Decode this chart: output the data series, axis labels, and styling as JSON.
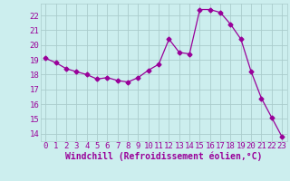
{
  "x": [
    0,
    1,
    2,
    3,
    4,
    5,
    6,
    7,
    8,
    9,
    10,
    11,
    12,
    13,
    14,
    15,
    16,
    17,
    18,
    19,
    20,
    21,
    22,
    23
  ],
  "y": [
    19.1,
    18.8,
    18.4,
    18.2,
    18.0,
    17.7,
    17.8,
    17.6,
    17.5,
    17.8,
    18.3,
    18.7,
    20.4,
    19.5,
    19.4,
    22.4,
    22.4,
    22.2,
    21.4,
    20.4,
    18.2,
    16.4,
    15.1,
    13.8
  ],
  "line_color": "#990099",
  "marker": "D",
  "marker_size": 2.5,
  "bg_color": "#cceeee",
  "grid_color": "#aacccc",
  "xlabel": "Windchill (Refroidissement éolien,°C)",
  "xlabel_fontsize": 7,
  "yticks": [
    14,
    15,
    16,
    17,
    18,
    19,
    20,
    21,
    22
  ],
  "ylim": [
    13.5,
    22.8
  ],
  "xlim": [
    -0.5,
    23.5
  ],
  "tick_fontsize": 6.5
}
